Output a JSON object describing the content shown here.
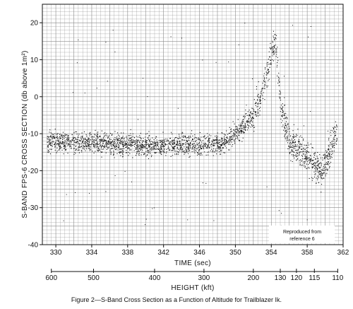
{
  "figure": {
    "caption": "Figure 2—S-Band Cross Section as a Function of Altitude for Trailblazer Ik."
  },
  "chart_data": {
    "type": "scatter",
    "ylabel": "S-BAND FPS-6 CROSS SECTION (db above 1m²)",
    "xlabel": "TIME (sec)",
    "secondary_xlabel": "HEIGHT (kft)",
    "ylim": [
      -40,
      25
    ],
    "xlim": [
      328.5,
      362
    ],
    "y_ticks": [
      "20",
      "10",
      "0",
      "-10",
      "-20",
      "-30",
      "-40"
    ],
    "y_tick_values": [
      20,
      10,
      0,
      -10,
      -20,
      -30,
      -40
    ],
    "x_ticks": [
      "330",
      "334",
      "338",
      "342",
      "346",
      "350",
      "354",
      "358",
      "362"
    ],
    "x_tick_values": [
      330,
      334,
      338,
      342,
      346,
      350,
      354,
      358,
      362
    ],
    "height_ticks": [
      "600",
      "500",
      "400",
      "300",
      "200",
      "130",
      "120",
      "115",
      "110"
    ],
    "height_tick_times": [
      329.5,
      334.2,
      341.0,
      346.5,
      352.0,
      355.0,
      356.8,
      358.8,
      361.4
    ],
    "grid": true,
    "grid_style": "fine graph-paper grid",
    "annotation": "Reproduced from\nreference 6",
    "annotation_position": "bottom-right",
    "series": [
      {
        "trend_points": [
          {
            "x": 329.0,
            "y": -12
          },
          {
            "x": 334.0,
            "y": -12.5
          },
          {
            "x": 340.0,
            "y": -13
          },
          {
            "x": 346.0,
            "y": -13
          },
          {
            "x": 348.5,
            "y": -12.5
          },
          {
            "x": 350.5,
            "y": -9
          },
          {
            "x": 352.0,
            "y": -5
          },
          {
            "x": 353.0,
            "y": 2
          },
          {
            "x": 354.0,
            "y": 12
          },
          {
            "x": 354.4,
            "y": 16
          },
          {
            "x": 355.0,
            "y": -2
          },
          {
            "x": 356.0,
            "y": -12
          },
          {
            "x": 358.0,
            "y": -16
          },
          {
            "x": 359.5,
            "y": -20
          },
          {
            "x": 360.5,
            "y": -15
          },
          {
            "x": 361.3,
            "y": -9
          }
        ],
        "scatter_spread_db": 4
      }
    ],
    "colors": {
      "points": "#111111",
      "grid": "#8a8a8a",
      "background": "#ffffff"
    }
  }
}
